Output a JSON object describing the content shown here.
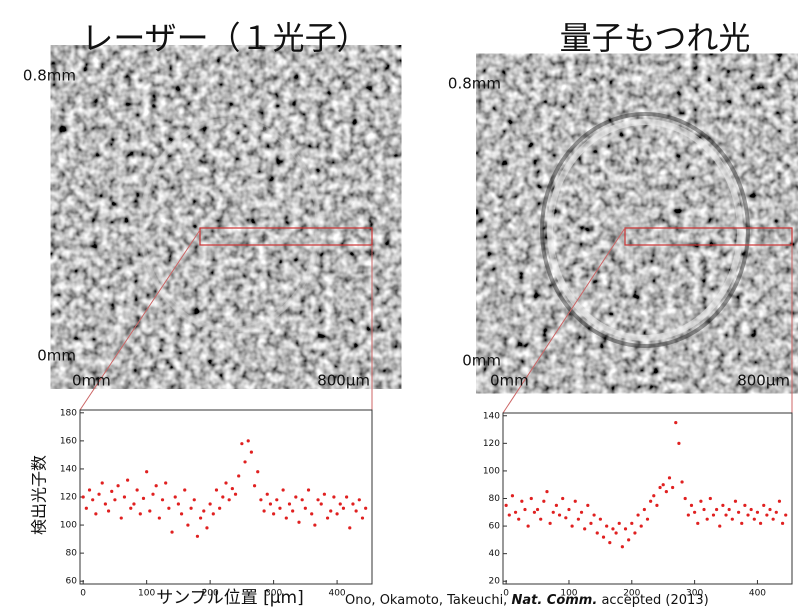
{
  "chart_data": [
    {
      "type": "scatter",
      "title": "レーザー（１光子）",
      "y_label": "検出光子数",
      "x_label": "サンプル位置 [µm]",
      "color": "#e02020",
      "x": [
        0,
        5,
        10,
        15,
        20,
        25,
        30,
        35,
        40,
        45,
        50,
        55,
        60,
        65,
        70,
        75,
        80,
        85,
        90,
        95,
        100,
        105,
        110,
        115,
        120,
        125,
        130,
        135,
        140,
        145,
        150,
        155,
        160,
        165,
        170,
        175,
        180,
        185,
        190,
        195,
        200,
        205,
        210,
        215,
        220,
        225,
        230,
        235,
        240,
        245,
        250,
        255,
        260,
        265,
        270,
        275,
        280,
        285,
        290,
        295,
        300,
        305,
        310,
        315,
        320,
        325,
        330,
        335,
        340,
        345,
        350,
        355,
        360,
        365,
        370,
        375,
        380,
        385,
        390,
        395,
        400,
        405,
        410,
        415,
        420,
        425,
        430,
        435,
        440,
        445
      ],
      "values": [
        120,
        112,
        125,
        118,
        108,
        122,
        130,
        115,
        110,
        124,
        118,
        128,
        105,
        120,
        132,
        112,
        115,
        125,
        108,
        119,
        138,
        110,
        122,
        128,
        105,
        118,
        130,
        112,
        95,
        120,
        115,
        108,
        125,
        100,
        112,
        118,
        92,
        105,
        110,
        98,
        115,
        108,
        125,
        112,
        120,
        130,
        118,
        126,
        122,
        135,
        158,
        145,
        160,
        152,
        128,
        138,
        118,
        110,
        122,
        115,
        108,
        118,
        112,
        125,
        105,
        115,
        110,
        120,
        102,
        118,
        112,
        125,
        108,
        100,
        118,
        115,
        122,
        105,
        110,
        120,
        108,
        115,
        112,
        120,
        98,
        115,
        110,
        118,
        105,
        112
      ],
      "xlim": [
        -5,
        455
      ],
      "xticks": [
        0,
        100,
        200,
        300,
        400
      ],
      "ylim": [
        58,
        182
      ],
      "yticks": [
        60,
        80,
        100,
        120,
        140,
        160,
        180
      ]
    },
    {
      "type": "scatter",
      "title": "量子もつれ光",
      "color": "#e02020",
      "x": [
        0,
        5,
        10,
        15,
        20,
        25,
        30,
        35,
        40,
        45,
        50,
        55,
        60,
        65,
        70,
        75,
        80,
        85,
        90,
        95,
        100,
        105,
        110,
        115,
        120,
        125,
        130,
        135,
        140,
        145,
        150,
        155,
        160,
        165,
        170,
        175,
        180,
        185,
        190,
        195,
        200,
        205,
        210,
        215,
        220,
        225,
        230,
        235,
        240,
        245,
        250,
        255,
        260,
        265,
        270,
        275,
        280,
        285,
        290,
        295,
        300,
        305,
        310,
        315,
        320,
        325,
        330,
        335,
        340,
        345,
        350,
        355,
        360,
        365,
        370,
        375,
        380,
        385,
        390,
        395,
        400,
        405,
        410,
        415,
        420,
        425,
        430,
        435,
        440,
        445
      ],
      "values": [
        75,
        68,
        82,
        70,
        65,
        78,
        72,
        60,
        80,
        70,
        72,
        65,
        78,
        85,
        62,
        70,
        75,
        68,
        80,
        66,
        72,
        60,
        78,
        65,
        70,
        58,
        75,
        62,
        68,
        55,
        65,
        52,
        60,
        48,
        58,
        55,
        62,
        45,
        58,
        50,
        62,
        55,
        68,
        60,
        72,
        65,
        78,
        82,
        75,
        88,
        90,
        85,
        95,
        88,
        135,
        120,
        92,
        80,
        68,
        75,
        70,
        62,
        78,
        72,
        65,
        80,
        68,
        72,
        60,
        75,
        68,
        72,
        65,
        78,
        70,
        62,
        75,
        68,
        72,
        65,
        70,
        62,
        75,
        68,
        72,
        65,
        70,
        78,
        62,
        68
      ],
      "xlim": [
        -5,
        455
      ],
      "xticks": [
        0,
        100,
        200,
        300,
        400
      ],
      "ylim": [
        18,
        142
      ],
      "yticks": [
        20,
        40,
        60,
        80,
        100,
        120,
        140
      ]
    }
  ],
  "image_labels": {
    "top": "0.8mm",
    "bottom": "0mm",
    "x_start": "0mm",
    "x_end": "800µm"
  },
  "citation": {
    "authors": "Ono, Okamoto, Takeuchi,",
    "journal": "Nat. Comm.",
    "note": "accepted (2013)"
  }
}
